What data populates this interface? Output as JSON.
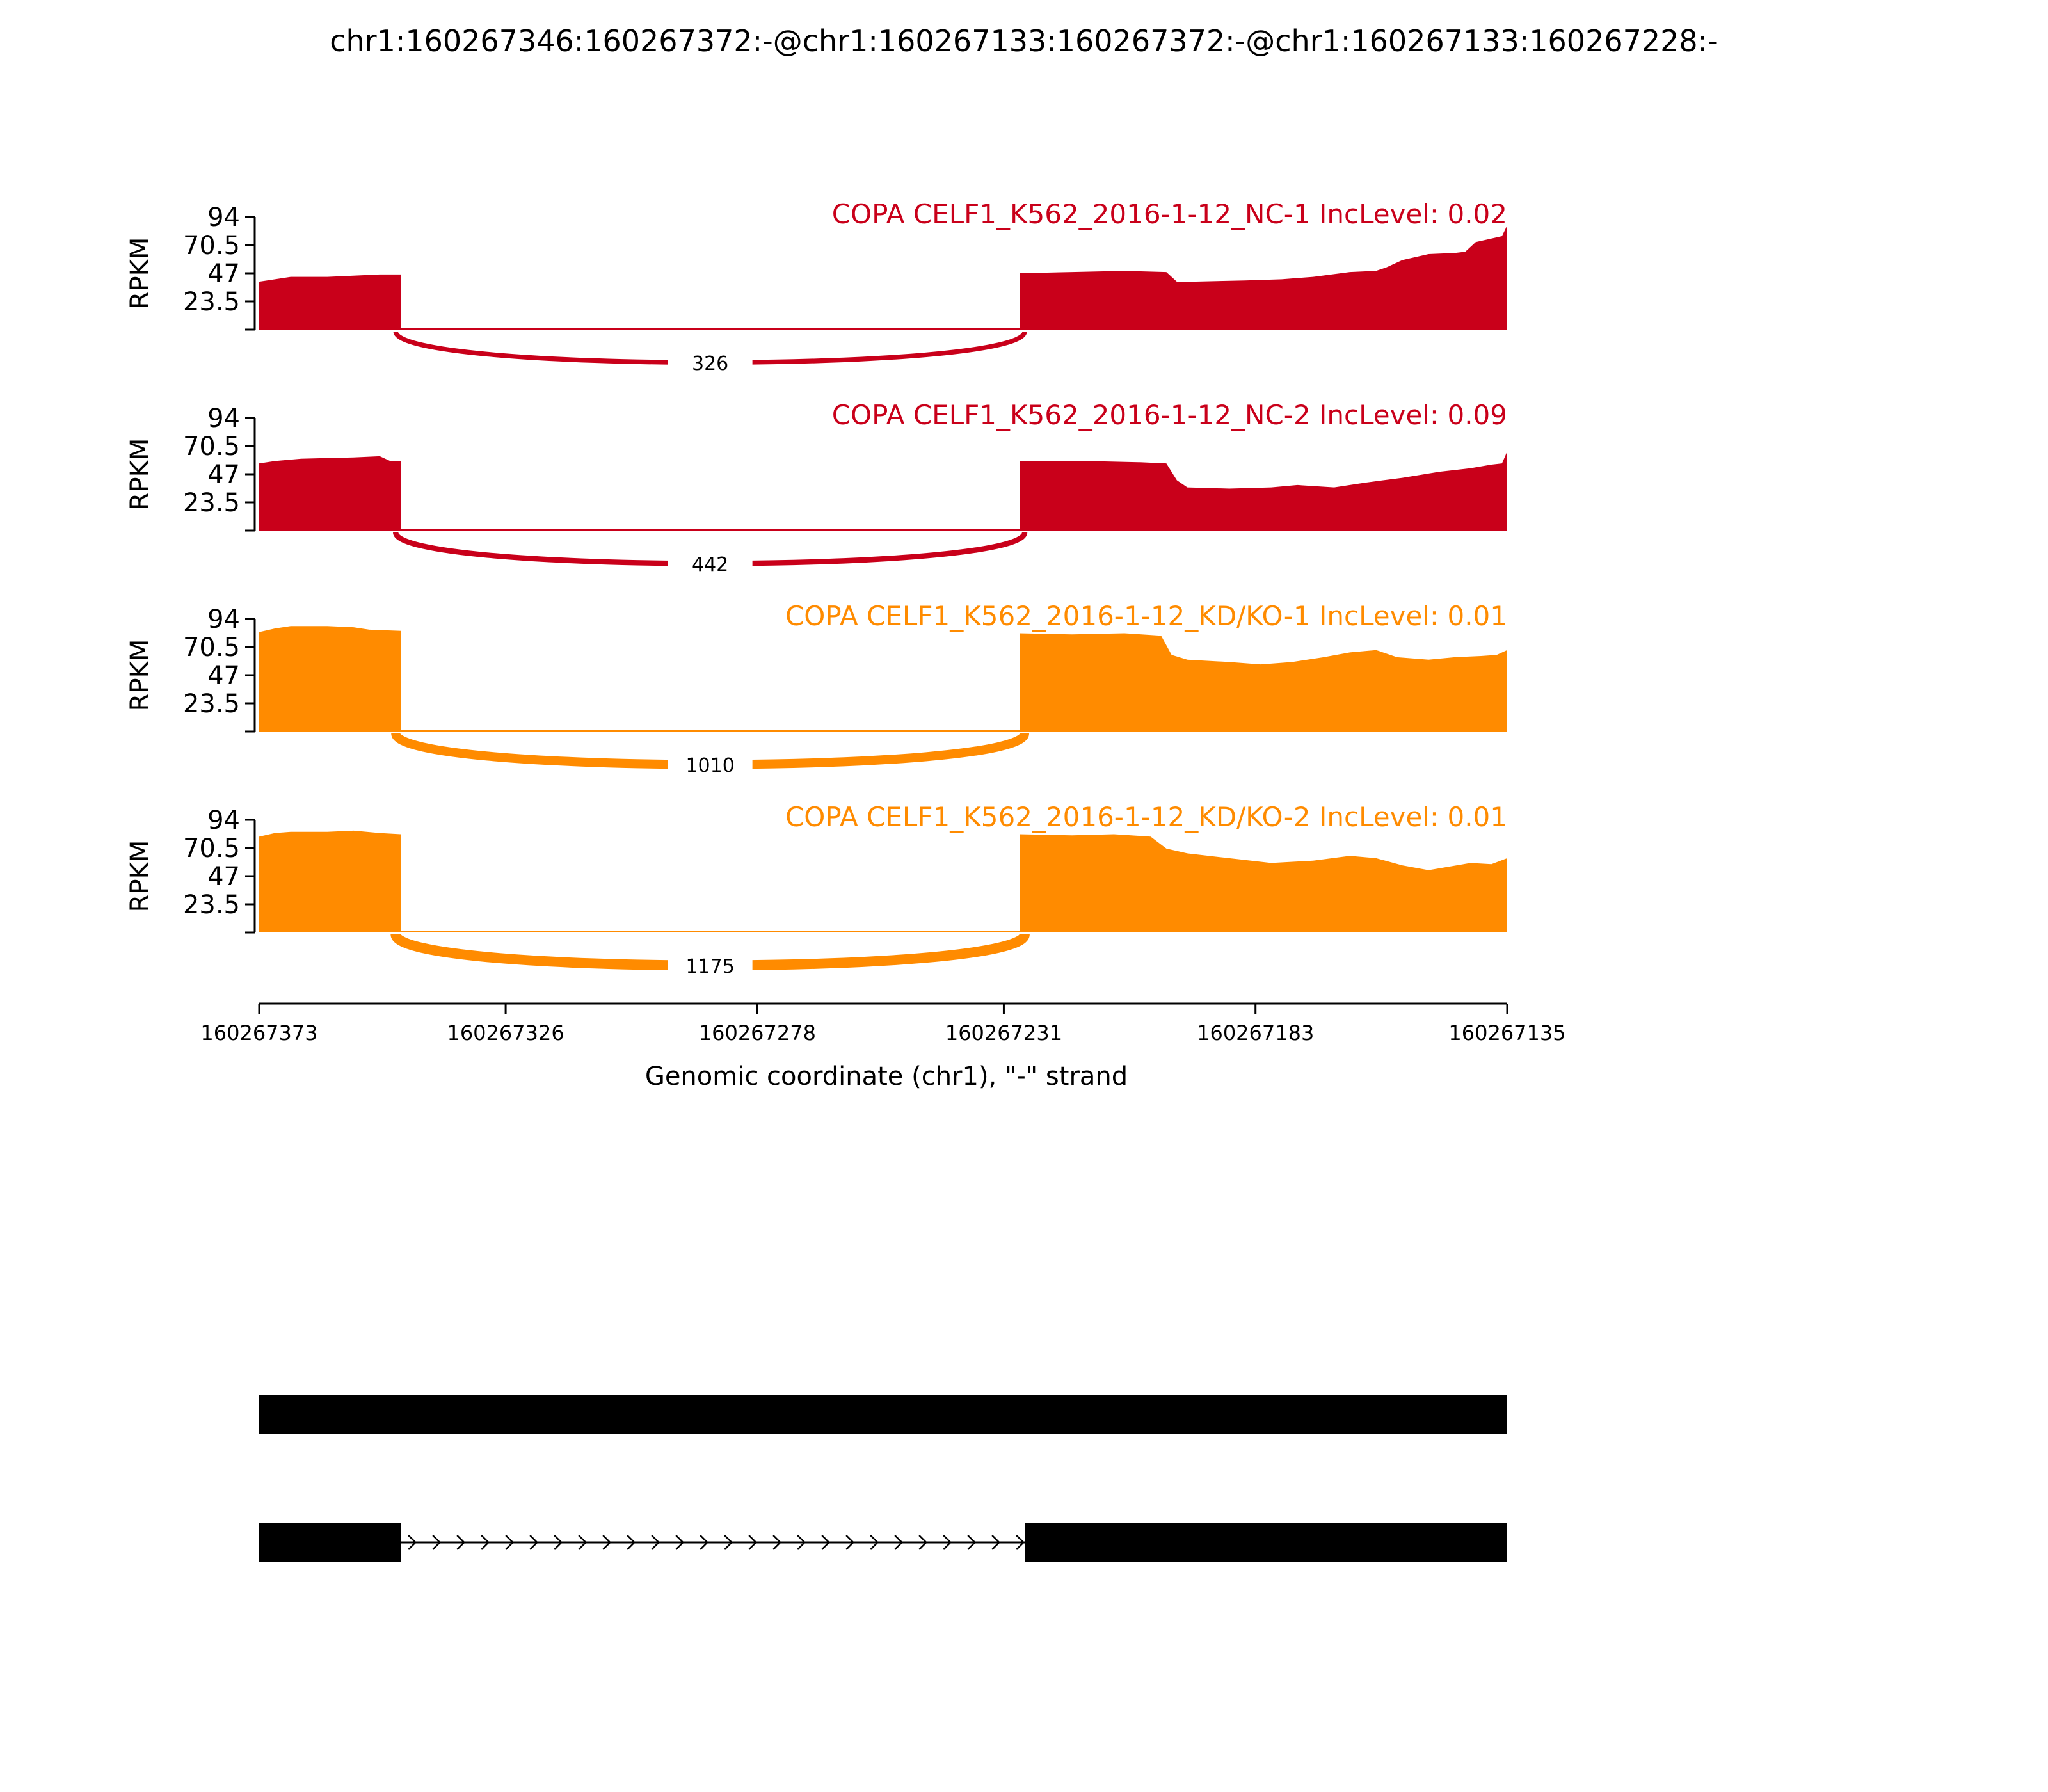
{
  "title": "chr1:160267346:160267372:-@chr1:160267133:160267372:-@chr1:160267133:160267228:-",
  "chart_data": {
    "type": "area",
    "xlabel": "Genomic coordinate (chr1), \"-\" strand",
    "ylabel": "RPKM",
    "x_reversed": true,
    "xlim": [
      160267373,
      160267135
    ],
    "xticks": [
      160267373,
      160267326,
      160267278,
      160267231,
      160267183,
      160267135
    ],
    "ylim": [
      0,
      94
    ],
    "yticks": [
      23.5,
      47,
      70.5,
      94
    ],
    "tracks": [
      {
        "label": "COPA CELF1_K562_2016-1-12_NC-1 IncLevel: 0.02",
        "color": "#c9001a",
        "junction": {
          "from": 160267346,
          "to": 160267228,
          "count": "326"
        },
        "coverage": [
          [
            160267373,
            40
          ],
          [
            160267370,
            42
          ],
          [
            160267367,
            44
          ],
          [
            160267360,
            44
          ],
          [
            160267355,
            45
          ],
          [
            160267350,
            46
          ],
          [
            160267346,
            46
          ],
          [
            160267228,
            47
          ],
          [
            160267218,
            48
          ],
          [
            160267208,
            49
          ],
          [
            160267200,
            48
          ],
          [
            160267198,
            40
          ],
          [
            160267195,
            40
          ],
          [
            160267185,
            41
          ],
          [
            160267178,
            42
          ],
          [
            160267172,
            44
          ],
          [
            160267165,
            48
          ],
          [
            160267160,
            49
          ],
          [
            160267158,
            52
          ],
          [
            160267155,
            58
          ],
          [
            160267150,
            63
          ],
          [
            160267145,
            64
          ],
          [
            160267143,
            65
          ],
          [
            160267141,
            73
          ],
          [
            160267138,
            76
          ],
          [
            160267136,
            78
          ],
          [
            160267135,
            87
          ]
        ]
      },
      {
        "label": "COPA CELF1_K562_2016-1-12_NC-2 IncLevel: 0.09",
        "color": "#c9001a",
        "junction": {
          "from": 160267346,
          "to": 160267228,
          "count": "442"
        },
        "coverage": [
          [
            160267373,
            56
          ],
          [
            160267370,
            58
          ],
          [
            160267365,
            60
          ],
          [
            160267355,
            61
          ],
          [
            160267350,
            62
          ],
          [
            160267348,
            58
          ],
          [
            160267346,
            58
          ],
          [
            160267228,
            58
          ],
          [
            160267215,
            58
          ],
          [
            160267205,
            57
          ],
          [
            160267200,
            56
          ],
          [
            160267198,
            42
          ],
          [
            160267196,
            36
          ],
          [
            160267188,
            35
          ],
          [
            160267180,
            36
          ],
          [
            160267175,
            38
          ],
          [
            160267168,
            36
          ],
          [
            160267162,
            40
          ],
          [
            160267155,
            44
          ],
          [
            160267148,
            49
          ],
          [
            160267142,
            52
          ],
          [
            160267138,
            55
          ],
          [
            160267136,
            56
          ],
          [
            160267135,
            66
          ]
        ]
      },
      {
        "label": "COPA CELF1_K562_2016-1-12_KD/KO-1 IncLevel: 0.01",
        "color": "#ff8b00",
        "junction": {
          "from": 160267346,
          "to": 160267228,
          "count": "1010"
        },
        "coverage": [
          [
            160267373,
            83
          ],
          [
            160267370,
            86
          ],
          [
            160267367,
            88
          ],
          [
            160267360,
            88
          ],
          [
            160267355,
            87
          ],
          [
            160267352,
            85
          ],
          [
            160267346,
            84
          ],
          [
            160267228,
            82
          ],
          [
            160267218,
            81
          ],
          [
            160267208,
            82
          ],
          [
            160267201,
            80
          ],
          [
            160267199,
            64
          ],
          [
            160267196,
            60
          ],
          [
            160267188,
            58
          ],
          [
            160267182,
            56
          ],
          [
            160267176,
            58
          ],
          [
            160267170,
            62
          ],
          [
            160267165,
            66
          ],
          [
            160267160,
            68
          ],
          [
            160267156,
            62
          ],
          [
            160267150,
            60
          ],
          [
            160267145,
            62
          ],
          [
            160267140,
            63
          ],
          [
            160267137,
            64
          ],
          [
            160267135,
            68
          ]
        ]
      },
      {
        "label": "COPA CELF1_K562_2016-1-12_KD/KO-2 IncLevel: 0.01",
        "color": "#ff8b00",
        "junction": {
          "from": 160267346,
          "to": 160267228,
          "count": "1175"
        },
        "coverage": [
          [
            160267373,
            80
          ],
          [
            160267370,
            83
          ],
          [
            160267367,
            84
          ],
          [
            160267360,
            84
          ],
          [
            160267355,
            85
          ],
          [
            160267350,
            83
          ],
          [
            160267346,
            82
          ],
          [
            160267228,
            82
          ],
          [
            160267218,
            81
          ],
          [
            160267210,
            82
          ],
          [
            160267203,
            80
          ],
          [
            160267200,
            70
          ],
          [
            160267196,
            66
          ],
          [
            160267188,
            62
          ],
          [
            160267180,
            58
          ],
          [
            160267172,
            60
          ],
          [
            160267165,
            64
          ],
          [
            160267160,
            62
          ],
          [
            160267155,
            56
          ],
          [
            160267150,
            52
          ],
          [
            160267146,
            55
          ],
          [
            160267142,
            58
          ],
          [
            160267138,
            57
          ],
          [
            160267135,
            62
          ]
        ]
      }
    ],
    "gene_models": [
      {
        "exons": [
          [
            160267373,
            160267135
          ]
        ],
        "introns": []
      },
      {
        "exons": [
          [
            160267373,
            160267346
          ],
          [
            160267227,
            160267135
          ]
        ],
        "introns": [
          [
            160267346,
            160267227
          ]
        ]
      }
    ]
  }
}
